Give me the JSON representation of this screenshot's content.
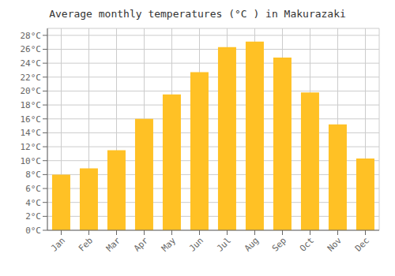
{
  "chart_data": {
    "type": "bar",
    "title": "Average monthly temperatures (°C ) in Makurazaki",
    "categories": [
      "Jan",
      "Feb",
      "Mar",
      "Apr",
      "May",
      "Jun",
      "Jul",
      "Aug",
      "Sep",
      "Oct",
      "Nov",
      "Dec"
    ],
    "values": [
      8.0,
      8.9,
      11.5,
      16.0,
      19.5,
      22.7,
      26.3,
      27.1,
      24.8,
      19.8,
      15.2,
      10.3
    ],
    "color": "#FFC125",
    "ylim": [
      0,
      29
    ],
    "yticks": [
      {
        "value": 0,
        "label": "0°C"
      },
      {
        "value": 2,
        "label": "2°C"
      },
      {
        "value": 4,
        "label": "4°C"
      },
      {
        "value": 6,
        "label": "6°C"
      },
      {
        "value": 8,
        "label": "8°C"
      },
      {
        "value": 10,
        "label": "10°C"
      },
      {
        "value": 12,
        "label": "12°C"
      },
      {
        "value": 14,
        "label": "14°C"
      },
      {
        "value": 16,
        "label": "16°C"
      },
      {
        "value": 18,
        "label": "18°C"
      },
      {
        "value": 20,
        "label": "20°C"
      },
      {
        "value": 22,
        "label": "22°C"
      },
      {
        "value": 24,
        "label": "24°C"
      },
      {
        "value": 26,
        "label": "26°C"
      },
      {
        "value": 28,
        "label": "28°C"
      }
    ],
    "grid": true
  }
}
